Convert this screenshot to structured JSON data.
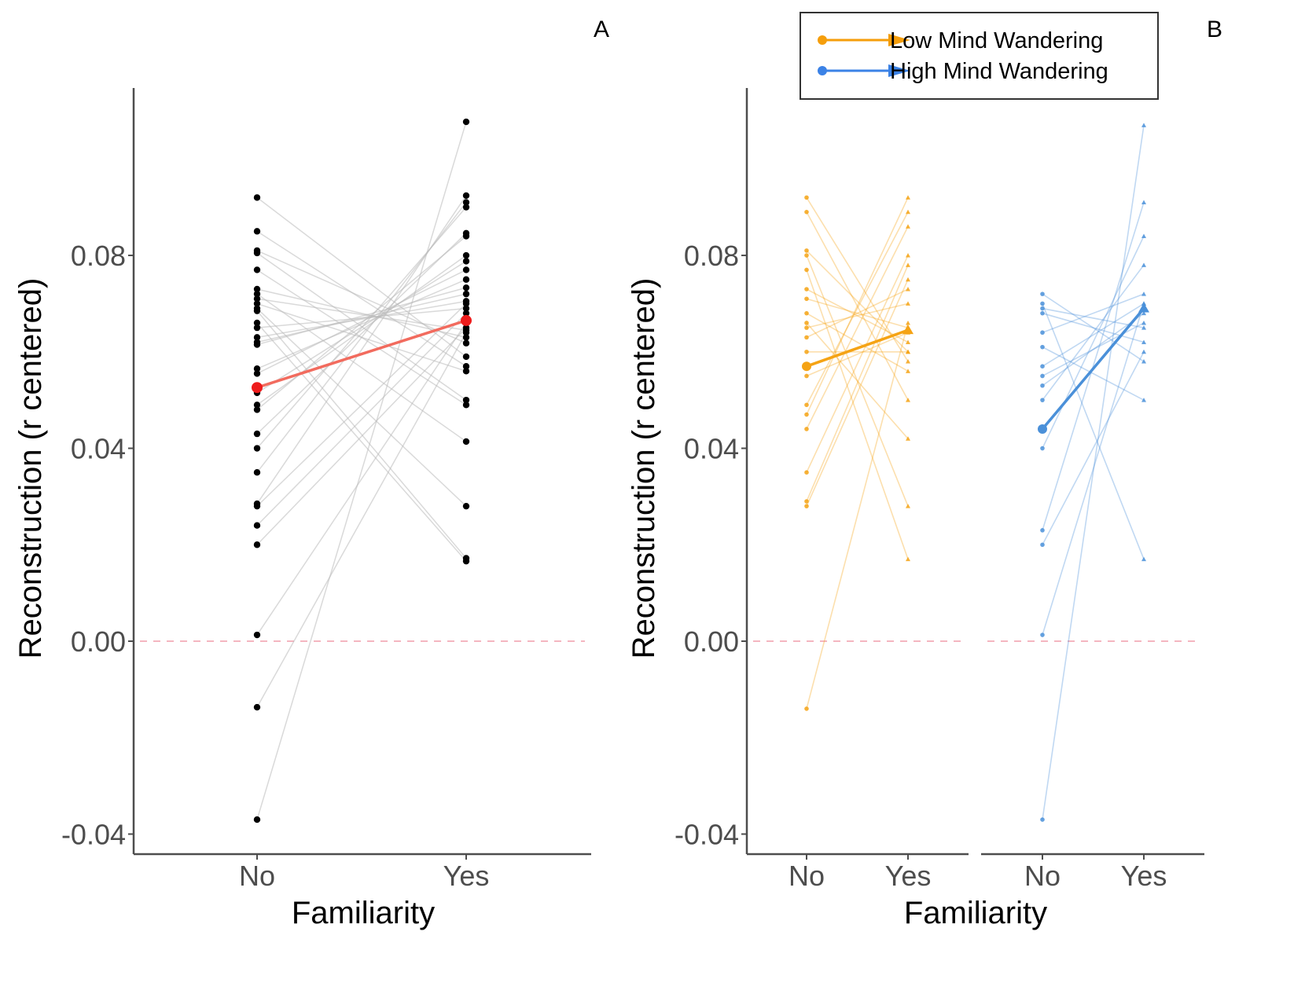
{
  "chart_data": [
    {
      "panel_label": "A",
      "type": "line",
      "subtype": "paired-slope",
      "title": "",
      "xlabel": "Familiarity",
      "ylabel": "Reconstruction (r centered)",
      "categories": [
        "No",
        "Yes"
      ],
      "yticks": [
        0.08,
        0.04,
        0.0,
        -0.04
      ],
      "ytick_labels": [
        "0.08",
        "0.04",
        "0.00",
        "-0.04"
      ],
      "ylim": [
        -0.043,
        0.112
      ],
      "reference_line": {
        "y": 0.0,
        "style": "dashed",
        "color": "#f4b6c0"
      },
      "grid": false,
      "colors": {
        "points": "#000000",
        "pair_lines": "#b9b9b9",
        "mean": "#ee1c1c",
        "mean_line": "#f26b5e"
      },
      "mean": {
        "No": 0.0526,
        "Yes": 0.0665
      },
      "pairs": [
        [
          0.092,
          0.059
        ],
        [
          0.085,
          0.057
        ],
        [
          0.081,
          0.0618
        ],
        [
          0.0805,
          0.05
        ],
        [
          0.077,
          0.049
        ],
        [
          0.073,
          0.063
        ],
        [
          0.072,
          0.0414
        ],
        [
          0.071,
          0.0645
        ],
        [
          0.07,
          0.056
        ],
        [
          0.069,
          0.028
        ],
        [
          0.0685,
          0.0172
        ],
        [
          0.066,
          0.0166
        ],
        [
          0.065,
          0.069
        ],
        [
          0.063,
          0.0705
        ],
        [
          0.062,
          0.072
        ],
        [
          0.0615,
          0.0733
        ],
        [
          0.0565,
          0.075
        ],
        [
          0.0555,
          0.077
        ],
        [
          0.0515,
          0.0788
        ],
        [
          0.049,
          0.08
        ],
        [
          0.048,
          0.084
        ],
        [
          0.043,
          0.0846
        ],
        [
          0.04,
          0.09
        ],
        [
          0.035,
          0.091
        ],
        [
          0.0285,
          0.0924
        ],
        [
          0.028,
          0.07
        ],
        [
          0.024,
          0.068
        ],
        [
          0.02,
          0.065
        ],
        [
          0.0013,
          0.066
        ],
        [
          -0.0137,
          0.064
        ],
        [
          -0.037,
          0.1077
        ]
      ]
    },
    {
      "panel_label": "B",
      "type": "line",
      "subtype": "paired-slope",
      "title": "",
      "xlabel": "Familiarity",
      "ylabel": "Reconstruction (r centered)",
      "categories": [
        "No",
        "Yes",
        "No",
        "Yes"
      ],
      "yticks": [
        0.08,
        0.04,
        0.0,
        -0.04
      ],
      "ytick_labels": [
        "0.08",
        "0.04",
        "0.00",
        "-0.04"
      ],
      "ylim": [
        -0.043,
        0.112
      ],
      "reference_line": {
        "y": 0.0,
        "style": "dashed",
        "color": "#f4b6c0"
      },
      "grid": false,
      "legend": {
        "position": "top-right",
        "entries": [
          {
            "label": "Low Mind Wandering",
            "color": "#f59e0b"
          },
          {
            "label": "High Mind Wandering",
            "color": "#3b82e6"
          }
        ]
      },
      "series": [
        {
          "name": "Low Mind Wandering",
          "color": "#f5a314",
          "mean": {
            "No": 0.057,
            "Yes": 0.0645
          },
          "pairs": [
            [
              0.092,
              0.058
            ],
            [
              0.089,
              0.05
            ],
            [
              0.081,
              0.06
            ],
            [
              0.08,
              0.028
            ],
            [
              0.077,
              0.017
            ],
            [
              0.073,
              0.062
            ],
            [
              0.071,
              0.065
            ],
            [
              0.068,
              0.056
            ],
            [
              0.066,
              0.042
            ],
            [
              0.065,
              0.07
            ],
            [
              0.063,
              0.073
            ],
            [
              0.06,
              0.06
            ],
            [
              0.055,
              0.064
            ],
            [
              0.049,
              0.089
            ],
            [
              0.047,
              0.092
            ],
            [
              0.044,
              0.086
            ],
            [
              0.035,
              0.08
            ],
            [
              0.029,
              0.078
            ],
            [
              0.028,
              0.075
            ],
            [
              -0.014,
              0.066
            ]
          ]
        },
        {
          "name": "High Mind Wandering",
          "color": "#4a90d9",
          "mean": {
            "No": 0.044,
            "Yes": 0.069
          },
          "pairs": [
            [
              0.072,
              0.058
            ],
            [
              0.07,
              0.017
            ],
            [
              0.069,
              0.065
            ],
            [
              0.068,
              0.062
            ],
            [
              0.064,
              0.072
            ],
            [
              0.061,
              0.05
            ],
            [
              0.057,
              0.07
            ],
            [
              0.055,
              0.066
            ],
            [
              0.053,
              0.068
            ],
            [
              0.05,
              0.078
            ],
            [
              0.04,
              0.084
            ],
            [
              0.023,
              0.091
            ],
            [
              0.02,
              0.06
            ],
            [
              0.0013,
              0.07
            ],
            [
              -0.037,
              0.107
            ]
          ]
        }
      ]
    }
  ]
}
